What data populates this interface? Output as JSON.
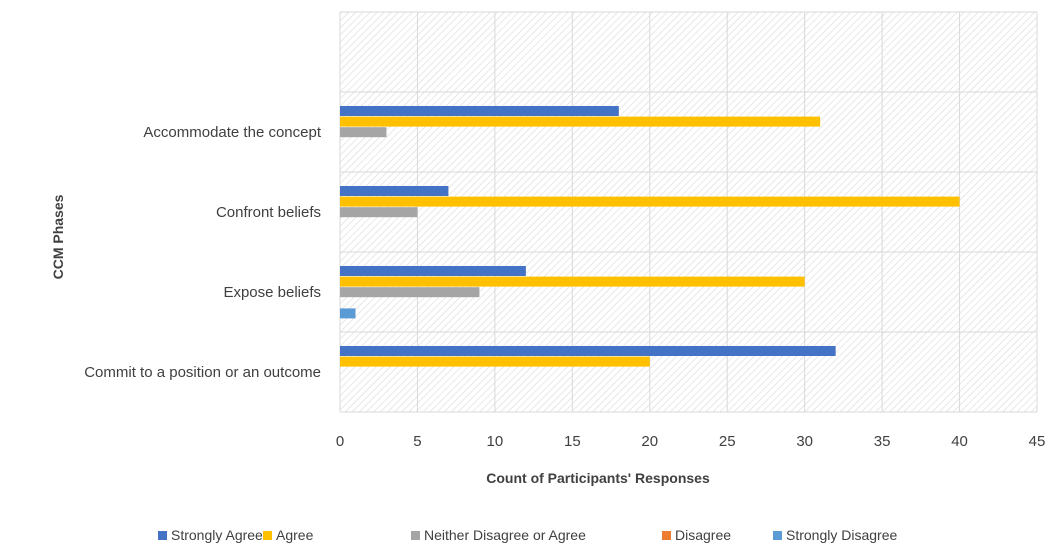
{
  "chart_data": {
    "type": "bar",
    "orientation": "horizontal",
    "categories": [
      "Commit to a position or an outcome",
      "Expose beliefs",
      "Confront beliefs",
      "Accommodate the concept"
    ],
    "series": [
      {
        "name": "Strongly Agree",
        "color": "#4472C4",
        "values": [
          32,
          12,
          7,
          18
        ]
      },
      {
        "name": "Agree",
        "color": "#FFC000",
        "values": [
          20,
          30,
          40,
          31
        ]
      },
      {
        "name": "Neither Disagree or Agree",
        "color": "#A5A5A5",
        "values": [
          0,
          9,
          5,
          3
        ]
      },
      {
        "name": "Disagree",
        "color": "#ED7D31",
        "values": [
          0,
          0,
          0,
          0
        ]
      },
      {
        "name": "Strongly Disagree",
        "color": "#5B9BD5",
        "values": [
          0,
          1,
          0,
          0
        ]
      }
    ],
    "xlabel": "Count of Participants' Responses",
    "ylabel": "CCM Phases",
    "xlim": [
      0,
      45
    ],
    "xticks": [
      "0",
      "5",
      "10",
      "15",
      "20",
      "25",
      "30",
      "35",
      "40",
      "45"
    ],
    "grid": true,
    "plot_background": "diagonal-hatch",
    "legend_position": "bottom"
  }
}
